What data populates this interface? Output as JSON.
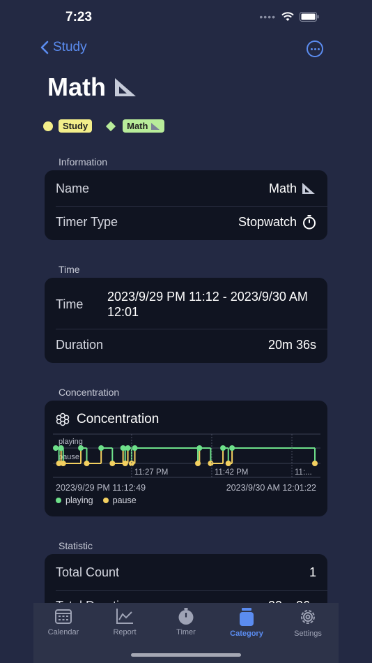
{
  "status": {
    "time": "7:23"
  },
  "nav": {
    "back_label": "Study"
  },
  "page": {
    "title": "Math",
    "title_icon": "triangle-ruler-icon"
  },
  "chips": {
    "study": "Study",
    "math": "Math"
  },
  "sections": {
    "information": {
      "label": "Information",
      "name_label": "Name",
      "name_value": "Math",
      "timer_label": "Timer Type",
      "timer_value": "Stopwatch"
    },
    "time": {
      "label": "Time",
      "time_label": "Time",
      "time_value": "2023/9/29 PM 11:12 - 2023/9/30 AM 12:01",
      "duration_label": "Duration",
      "duration_value": "20m 36s"
    },
    "concentration": {
      "label": "Concentration",
      "title": "Concentration",
      "start": "2023/9/29 PM 11:12:49",
      "end": "2023/9/30 AM 12:01:22"
    },
    "statistic": {
      "label": "Statistic",
      "total_count_label": "Total Count",
      "total_count_value": "1",
      "total_duration_label": "Total Duration",
      "total_duration_value": "20m 36s"
    }
  },
  "tabs": [
    {
      "label": "Calendar",
      "icon": "calendar-icon"
    },
    {
      "label": "Report",
      "icon": "chart-icon"
    },
    {
      "label": "Timer",
      "icon": "stopwatch-icon"
    },
    {
      "label": "Category",
      "icon": "jar-icon",
      "active": true
    },
    {
      "label": "Settings",
      "icon": "gear-icon"
    }
  ],
  "chart_data": {
    "type": "line",
    "y_categories": [
      "playing",
      "pause"
    ],
    "x_ticks": [
      "11:27 PM",
      "11:42 PM",
      "11:..."
    ],
    "series": [
      {
        "name": "playing",
        "color": "#6ee08a"
      },
      {
        "name": "pause",
        "color": "#f3d060"
      }
    ],
    "events": [
      {
        "t": 0.0,
        "s": "playing"
      },
      {
        "t": 0.6,
        "s": "pause"
      },
      {
        "t": 1.0,
        "s": "playing"
      },
      {
        "t": 1.4,
        "s": "pause"
      },
      {
        "t": 4.7,
        "s": "playing"
      },
      {
        "t": 5.8,
        "s": "pause"
      },
      {
        "t": 8.5,
        "s": "playing"
      },
      {
        "t": 10.6,
        "s": "pause"
      },
      {
        "t": 12.6,
        "s": "playing"
      },
      {
        "t": 13.0,
        "s": "pause"
      },
      {
        "t": 13.5,
        "s": "playing"
      },
      {
        "t": 14.2,
        "s": "pause"
      },
      {
        "t": 14.8,
        "s": "playing"
      },
      {
        "t": 26.6,
        "s": "pause"
      },
      {
        "t": 26.9,
        "s": "playing"
      },
      {
        "t": 29.0,
        "s": "pause"
      },
      {
        "t": 31.3,
        "s": "playing"
      },
      {
        "t": 32.3,
        "s": "pause"
      },
      {
        "t": 33.0,
        "s": "playing"
      },
      {
        "t": 48.5,
        "s": "pause"
      }
    ],
    "legend": "bottom-left",
    "ylabel": "",
    "xlabel": ""
  }
}
